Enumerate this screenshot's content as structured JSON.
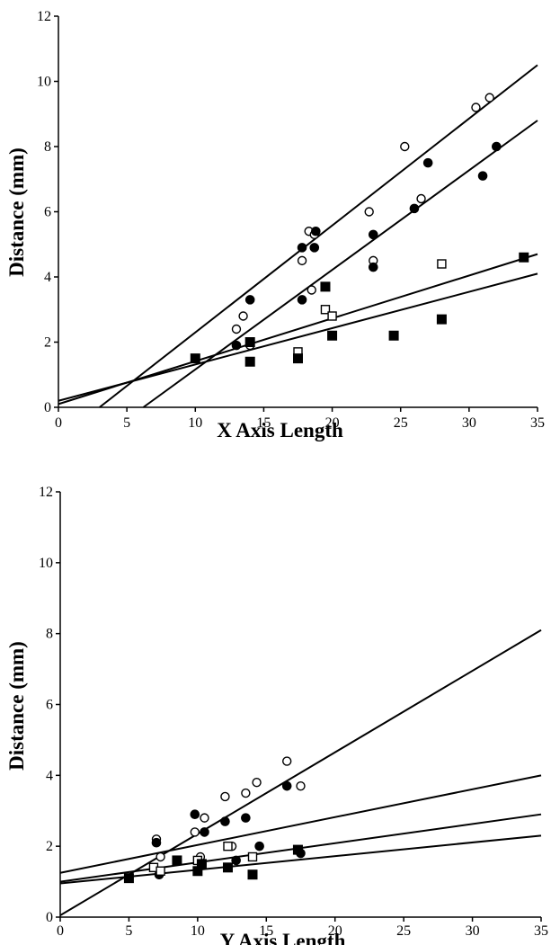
{
  "chart_data": [
    {
      "type": "scatter",
      "xlabel": "X Axis Length",
      "ylabel": "Distance (mm)",
      "xlim": [
        0,
        35
      ],
      "ylim": [
        0,
        12
      ],
      "xticks": [
        0,
        5,
        10,
        15,
        20,
        25,
        30,
        35
      ],
      "yticks": [
        0,
        2,
        4,
        6,
        8,
        10,
        12
      ],
      "grid": false,
      "series": [
        {
          "marker": "open-circle",
          "points": [
            [
              13,
              2.4
            ],
            [
              13.5,
              2.8
            ],
            [
              17.8,
              4.5
            ],
            [
              18.3,
              5.4
            ],
            [
              18.7,
              5.3
            ],
            [
              18.5,
              3.6
            ],
            [
              22.7,
              6.0
            ],
            [
              23.0,
              4.5
            ],
            [
              25.3,
              8.0
            ],
            [
              26.5,
              6.4
            ],
            [
              30.5,
              9.2
            ],
            [
              31.5,
              9.5
            ],
            [
              14.0,
              1.9
            ]
          ]
        },
        {
          "marker": "filled-circle",
          "points": [
            [
              13.0,
              1.9
            ],
            [
              14.0,
              3.3
            ],
            [
              17.8,
              4.9
            ],
            [
              17.8,
              3.3
            ],
            [
              18.7,
              4.9
            ],
            [
              18.8,
              5.4
            ],
            [
              23.0,
              5.3
            ],
            [
              23.0,
              4.3
            ],
            [
              26.0,
              6.1
            ],
            [
              27.0,
              7.5
            ],
            [
              31.0,
              7.1
            ],
            [
              32.0,
              8.0
            ]
          ]
        },
        {
          "marker": "open-square",
          "points": [
            [
              17.5,
              1.7
            ],
            [
              19.5,
              3.0
            ],
            [
              20.0,
              2.8
            ],
            [
              28.0,
              4.4
            ],
            [
              34.0,
              4.6
            ]
          ]
        },
        {
          "marker": "filled-square",
          "points": [
            [
              10.0,
              1.5
            ],
            [
              14.0,
              2.0
            ],
            [
              14.0,
              1.4
            ],
            [
              17.5,
              1.5
            ],
            [
              19.5,
              3.7
            ],
            [
              20.0,
              2.2
            ],
            [
              24.5,
              2.2
            ],
            [
              28.0,
              2.7
            ],
            [
              34.0,
              4.6
            ]
          ]
        }
      ],
      "fit_lines": [
        [
          [
            3.0,
            0
          ],
          [
            35,
            10.5
          ]
        ],
        [
          [
            6.2,
            0
          ],
          [
            35,
            8.8
          ]
        ],
        [
          [
            0,
            0.1
          ],
          [
            35,
            4.7
          ]
        ],
        [
          [
            0,
            0.2
          ],
          [
            35,
            4.1
          ]
        ]
      ]
    },
    {
      "type": "scatter",
      "xlabel": "Y Axis Length",
      "ylabel": "Distance (mm)",
      "xlim": [
        0,
        35
      ],
      "ylim": [
        0,
        12
      ],
      "xticks": [
        0,
        5,
        10,
        15,
        20,
        25,
        30,
        35
      ],
      "yticks": [
        0,
        2,
        4,
        6,
        8,
        10,
        12
      ],
      "grid": false,
      "series": [
        {
          "marker": "open-circle",
          "points": [
            [
              7.0,
              2.2
            ],
            [
              7.3,
              1.7
            ],
            [
              9.8,
              2.4
            ],
            [
              10.2,
              1.7
            ],
            [
              10.5,
              2.8
            ],
            [
              12.0,
              3.4
            ],
            [
              12.5,
              2.0
            ],
            [
              13.5,
              3.5
            ],
            [
              14.3,
              3.8
            ],
            [
              16.5,
              4.4
            ],
            [
              17.5,
              3.7
            ],
            [
              7.2,
              1.2
            ]
          ]
        },
        {
          "marker": "filled-circle",
          "points": [
            [
              7.0,
              2.1
            ],
            [
              7.2,
              1.2
            ],
            [
              9.8,
              2.9
            ],
            [
              10.3,
              1.5
            ],
            [
              10.5,
              2.4
            ],
            [
              12.0,
              2.7
            ],
            [
              12.8,
              1.6
            ],
            [
              13.5,
              2.8
            ],
            [
              14.5,
              2.0
            ],
            [
              16.5,
              3.7
            ],
            [
              17.5,
              1.8
            ]
          ]
        },
        {
          "marker": "open-square",
          "points": [
            [
              6.8,
              1.4
            ],
            [
              7.3,
              1.3
            ],
            [
              10.0,
              1.6
            ],
            [
              12.2,
              2.0
            ],
            [
              14.0,
              1.7
            ],
            [
              17.3,
              1.9
            ]
          ]
        },
        {
          "marker": "filled-square",
          "points": [
            [
              5.0,
              1.1
            ],
            [
              8.5,
              1.6
            ],
            [
              10.0,
              1.3
            ],
            [
              10.3,
              1.5
            ],
            [
              12.2,
              1.4
            ],
            [
              14.0,
              1.2
            ],
            [
              17.3,
              1.9
            ]
          ]
        }
      ],
      "fit_lines": [
        [
          [
            0,
            0.05
          ],
          [
            35,
            8.1
          ]
        ],
        [
          [
            0,
            1.25
          ],
          [
            35,
            4.0
          ]
        ],
        [
          [
            0,
            1.0
          ],
          [
            35,
            2.9
          ]
        ],
        [
          [
            0,
            0.95
          ],
          [
            35,
            2.3
          ]
        ]
      ]
    }
  ]
}
